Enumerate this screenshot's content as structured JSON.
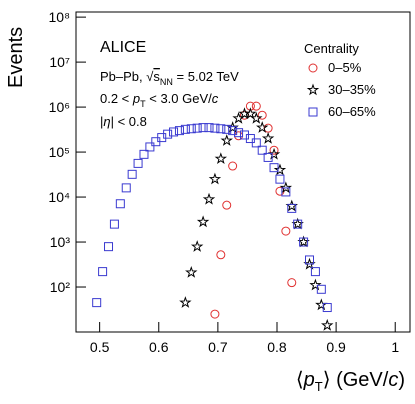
{
  "chart_data": {
    "type": "scatter",
    "annotations": {
      "experiment": "ALICE",
      "system": [
        "Pb–Pb, ",
        "√",
        "s",
        "NN",
        " = 5.02 TeV"
      ],
      "pt_range": [
        "0.2 < ",
        "p",
        "T",
        " < 3.0 GeV/",
        "c"
      ],
      "eta": [
        "|",
        "η",
        "| < 0.8"
      ]
    },
    "y_label": "Events",
    "x_label": [
      "⟨",
      "p",
      "T",
      "⟩ (GeV/",
      "c",
      ")"
    ],
    "legend_title": "Centrality",
    "log_y": true,
    "xlim": [
      0.46,
      1.025
    ],
    "ylim": [
      10,
      130000000
    ],
    "xticks": [
      0.5,
      0.6,
      0.7,
      0.8,
      0.9,
      1
    ],
    "yticks": [
      {
        "value": 100,
        "label": "10²"
      },
      {
        "value": 1000,
        "label": "10³"
      },
      {
        "value": 10000,
        "label": "10⁴"
      },
      {
        "value": 100000,
        "label": "10⁵"
      },
      {
        "value": 1000000,
        "label": "10⁶"
      },
      {
        "value": 10000000,
        "label": "10⁷"
      },
      {
        "value": 100000000,
        "label": "10⁸"
      }
    ],
    "series": [
      {
        "name": "0–5%",
        "color": "#e03030",
        "marker": "circle",
        "x": [
          0.695,
          0.705,
          0.715,
          0.725,
          0.735,
          0.745,
          0.755,
          0.765,
          0.775,
          0.785,
          0.795,
          0.805,
          0.815,
          0.825
        ],
        "values": [
          25,
          520,
          6600,
          49000,
          230000,
          660000,
          1050000,
          1050000,
          660000,
          340000,
          110000,
          13500,
          1750,
          125
        ]
      },
      {
        "name": "30–35%",
        "color": "#000000",
        "marker": "star",
        "x": [
          0.645,
          0.655,
          0.665,
          0.675,
          0.685,
          0.695,
          0.705,
          0.715,
          0.725,
          0.735,
          0.745,
          0.755,
          0.765,
          0.775,
          0.785,
          0.795,
          0.805,
          0.815,
          0.825,
          0.835,
          0.845,
          0.855,
          0.865,
          0.875,
          0.885
        ],
        "values": [
          45,
          210,
          790,
          2800,
          8900,
          25000,
          71000,
          180000,
          350000,
          560000,
          710000,
          710000,
          560000,
          350000,
          200000,
          89000,
          40000,
          16000,
          6300,
          2500,
          1000,
          320,
          110,
          40,
          14
        ]
      },
      {
        "name": "60–65%",
        "color": "#3a3ad0",
        "marker": "square",
        "x": [
          0.495,
          0.505,
          0.515,
          0.525,
          0.535,
          0.545,
          0.555,
          0.565,
          0.575,
          0.585,
          0.595,
          0.605,
          0.615,
          0.625,
          0.635,
          0.645,
          0.655,
          0.665,
          0.675,
          0.685,
          0.695,
          0.705,
          0.715,
          0.725,
          0.735,
          0.745,
          0.755,
          0.765,
          0.775,
          0.785,
          0.795,
          0.805,
          0.815,
          0.825,
          0.835,
          0.845,
          0.855,
          0.865,
          0.875,
          0.885
        ],
        "values": [
          45,
          220,
          790,
          2500,
          7100,
          16000,
          32000,
          56000,
          89000,
          130000,
          170000,
          210000,
          250000,
          280000,
          300000,
          320000,
          330000,
          340000,
          350000,
          350000,
          340000,
          330000,
          320000,
          300000,
          270000,
          240000,
          200000,
          160000,
          110000,
          76000,
          45000,
          25000,
          13000,
          5600,
          2500,
          1000,
          400,
          220,
          89,
          35
        ]
      }
    ]
  }
}
